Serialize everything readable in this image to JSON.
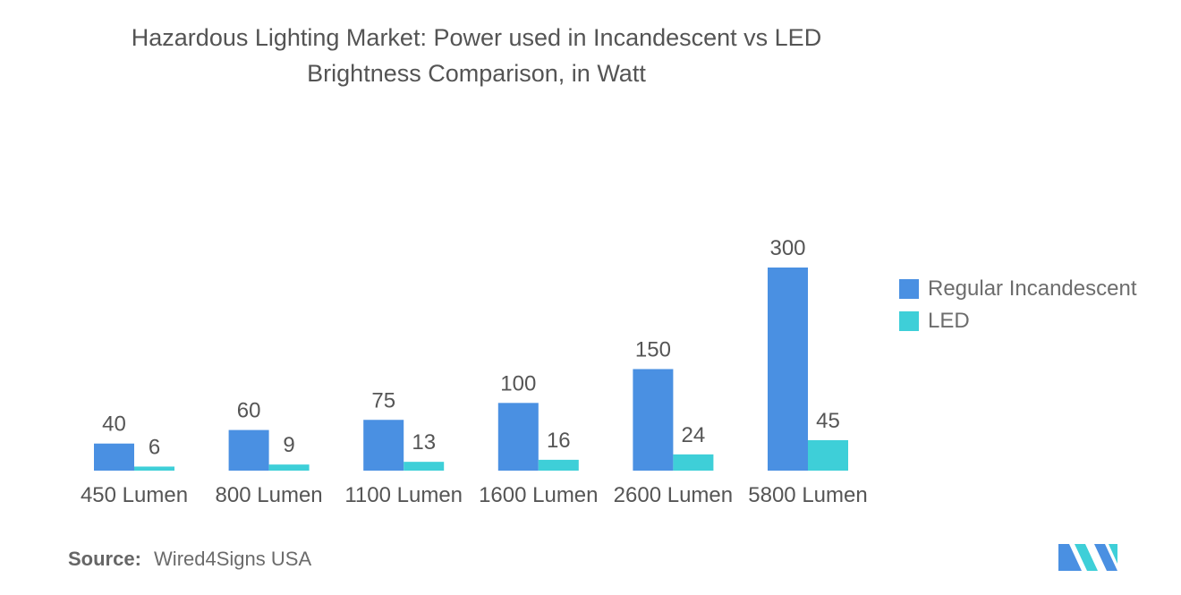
{
  "chart_data": {
    "type": "bar",
    "title": "Hazardous Lighting Market: Power used in Incandescent vs LED Brightness Comparison, in Watt",
    "title_lines": [
      "Hazardous Lighting Market: Power used in Incandescent vs LED",
      "Brightness Comparison, in Watt"
    ],
    "xlabel": "",
    "ylabel": "",
    "ylim": [
      0,
      300
    ],
    "grid": false,
    "legend_position": "right",
    "categories": [
      "450 Lumen",
      "800 Lumen",
      "1100 Lumen",
      "1600 Lumen",
      "2600 Lumen",
      "5800 Lumen"
    ],
    "series": [
      {
        "name": "Regular Incandescent",
        "color": "#4a90e2",
        "values": [
          40,
          60,
          75,
          100,
          150,
          300
        ]
      },
      {
        "name": "LED",
        "color": "#3ecfd8",
        "values": [
          6,
          9,
          13,
          16,
          24,
          45
        ]
      }
    ]
  },
  "source": {
    "label": "Source:",
    "text": "Wired4Signs USA"
  },
  "logo": {
    "icon": "mordor-logo-icon",
    "colors": [
      "#4a90e2",
      "#3ecfd8"
    ]
  }
}
